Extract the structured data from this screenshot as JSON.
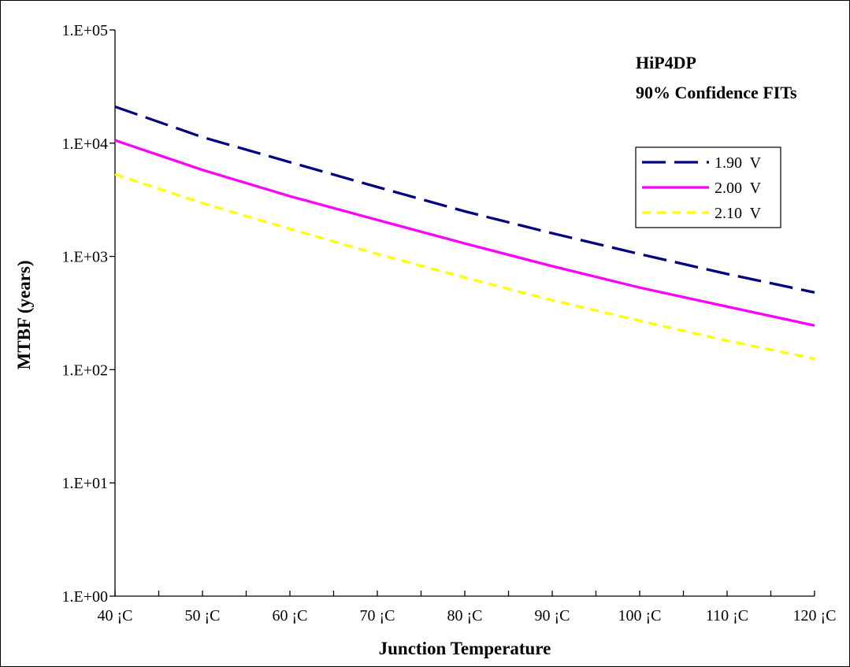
{
  "chart_data": {
    "type": "line",
    "title_lines": [
      "HiP4DP",
      "90% Confidence FITs"
    ],
    "xlabel": "Junction Temperature",
    "ylabel": "MTBF (years)",
    "y_scale": "log",
    "ylim": [
      1,
      100000
    ],
    "xlim": [
      40,
      120
    ],
    "y_tick_values": [
      1,
      10,
      100,
      1000,
      10000,
      100000
    ],
    "y_tick_labels": [
      "1.E+00",
      "1.E+01",
      "1.E+02",
      "1.E+03",
      "1.E+04",
      "1.E+05"
    ],
    "x_tick_values": [
      40,
      50,
      60,
      70,
      80,
      90,
      100,
      110,
      120
    ],
    "x_tick_labels": [
      "40 ¡C",
      "50 ¡C",
      "60 ¡C",
      "70 ¡C",
      "80 ¡C",
      "90 ¡C",
      "100 ¡C",
      "110 ¡C",
      "120 ¡C"
    ],
    "grid": false,
    "legend_position": "top-right",
    "x": [
      40,
      50,
      60,
      70,
      80,
      90,
      100,
      110,
      120
    ],
    "series": [
      {
        "name": "1.90  V",
        "color": "#000080",
        "dash": "long-dash",
        "values": [
          21000,
          11300,
          6800,
          4100,
          2500,
          1600,
          1050,
          700,
          480
        ]
      },
      {
        "name": "2.00  V",
        "color": "#ff00ff",
        "dash": "solid",
        "values": [
          10600,
          5800,
          3400,
          2100,
          1300,
          820,
          530,
          360,
          245
        ]
      },
      {
        "name": "2.10  V",
        "color": "#ffff00",
        "dash": "short-dash",
        "values": [
          5300,
          2950,
          1750,
          1050,
          650,
          410,
          270,
          180,
          125
        ]
      }
    ]
  }
}
